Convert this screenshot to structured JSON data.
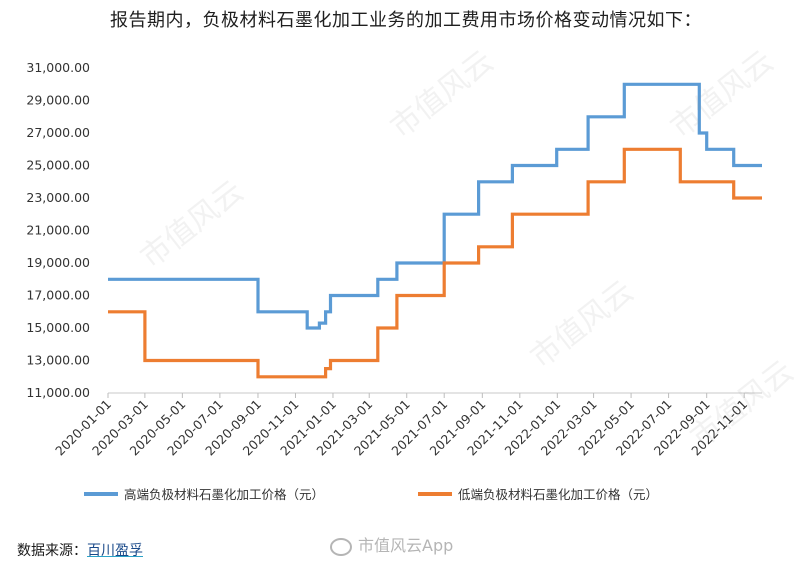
{
  "page": {
    "title": "报告期内，负极材料石墨化加工业务的加工费用市场价格变动情况如下：",
    "source_label": "数据来源：",
    "source_value": "百川盈孚",
    "watermark": "市值风云",
    "weibo_watermark": "市值风云App"
  },
  "chart_data": {
    "type": "line",
    "step": true,
    "title": "",
    "xlabel": "",
    "ylabel": "",
    "ylim": [
      11000,
      31000
    ],
    "yticks": [
      "11,000.00",
      "13,000.00",
      "15,000.00",
      "17,000.00",
      "19,000.00",
      "21,000.00",
      "23,000.00",
      "25,000.00",
      "27,000.00",
      "29,000.00",
      "31,000.00"
    ],
    "ytick_values": [
      11000,
      13000,
      15000,
      17000,
      19000,
      21000,
      23000,
      25000,
      27000,
      29000,
      31000
    ],
    "xlim": [
      "2020-01-01",
      "2022-11-30"
    ],
    "xticks": [
      "2020-01-01",
      "2020-03-01",
      "2020-05-01",
      "2020-07-01",
      "2020-09-01",
      "2020-11-01",
      "2021-01-01",
      "2021-03-01",
      "2021-05-01",
      "2021-07-01",
      "2021-09-01",
      "2021-11-01",
      "2022-01-01",
      "2022-03-01",
      "2022-05-01",
      "2022-07-01",
      "2022-09-01",
      "2022-11-01"
    ],
    "grid": false,
    "legend_position": "bottom",
    "series": [
      {
        "name": "高端负极材料石墨化加工价格（元）",
        "color": "#5b9bd5",
        "points": [
          [
            "2020-01-01",
            18000
          ],
          [
            "2020-09-01",
            18000
          ],
          [
            "2020-09-01",
            16000
          ],
          [
            "2020-11-20",
            16000
          ],
          [
            "2020-11-20",
            15000
          ],
          [
            "2020-12-10",
            15000
          ],
          [
            "2020-12-10",
            15300
          ],
          [
            "2020-12-20",
            15300
          ],
          [
            "2020-12-20",
            16000
          ],
          [
            "2020-12-28",
            16000
          ],
          [
            "2020-12-28",
            17000
          ],
          [
            "2021-03-15",
            17000
          ],
          [
            "2021-03-15",
            18000
          ],
          [
            "2021-04-15",
            18000
          ],
          [
            "2021-04-15",
            19000
          ],
          [
            "2021-07-01",
            19000
          ],
          [
            "2021-07-01",
            22000
          ],
          [
            "2021-08-26",
            22000
          ],
          [
            "2021-08-26",
            24000
          ],
          [
            "2021-10-20",
            24000
          ],
          [
            "2021-10-20",
            25000
          ],
          [
            "2021-12-31",
            25000
          ],
          [
            "2021-12-31",
            26000
          ],
          [
            "2022-02-20",
            26000
          ],
          [
            "2022-02-20",
            28000
          ],
          [
            "2022-04-20",
            28000
          ],
          [
            "2022-04-20",
            30000
          ],
          [
            "2022-08-20",
            30000
          ],
          [
            "2022-08-20",
            27000
          ],
          [
            "2022-09-01",
            27000
          ],
          [
            "2022-09-01",
            26000
          ],
          [
            "2022-10-15",
            26000
          ],
          [
            "2022-10-15",
            25000
          ],
          [
            "2022-11-30",
            25000
          ]
        ]
      },
      {
        "name": "低端负极材料石墨化加工价格（元）",
        "color": "#ed7d31",
        "points": [
          [
            "2020-01-01",
            16000
          ],
          [
            "2020-03-01",
            16000
          ],
          [
            "2020-03-01",
            13000
          ],
          [
            "2020-09-01",
            13000
          ],
          [
            "2020-09-01",
            12000
          ],
          [
            "2020-12-20",
            12000
          ],
          [
            "2020-12-20",
            12500
          ],
          [
            "2020-12-28",
            12500
          ],
          [
            "2020-12-28",
            13000
          ],
          [
            "2021-03-15",
            13000
          ],
          [
            "2021-03-15",
            15000
          ],
          [
            "2021-04-15",
            15000
          ],
          [
            "2021-04-15",
            17000
          ],
          [
            "2021-07-01",
            17000
          ],
          [
            "2021-07-01",
            19000
          ],
          [
            "2021-08-26",
            19000
          ],
          [
            "2021-08-26",
            20000
          ],
          [
            "2021-10-20",
            20000
          ],
          [
            "2021-10-20",
            22000
          ],
          [
            "2022-02-20",
            22000
          ],
          [
            "2022-02-20",
            24000
          ],
          [
            "2022-04-20",
            24000
          ],
          [
            "2022-04-20",
            26000
          ],
          [
            "2022-07-20",
            26000
          ],
          [
            "2022-07-20",
            24000
          ],
          [
            "2022-10-15",
            24000
          ],
          [
            "2022-10-15",
            23000
          ],
          [
            "2022-11-30",
            23000
          ]
        ]
      }
    ]
  }
}
